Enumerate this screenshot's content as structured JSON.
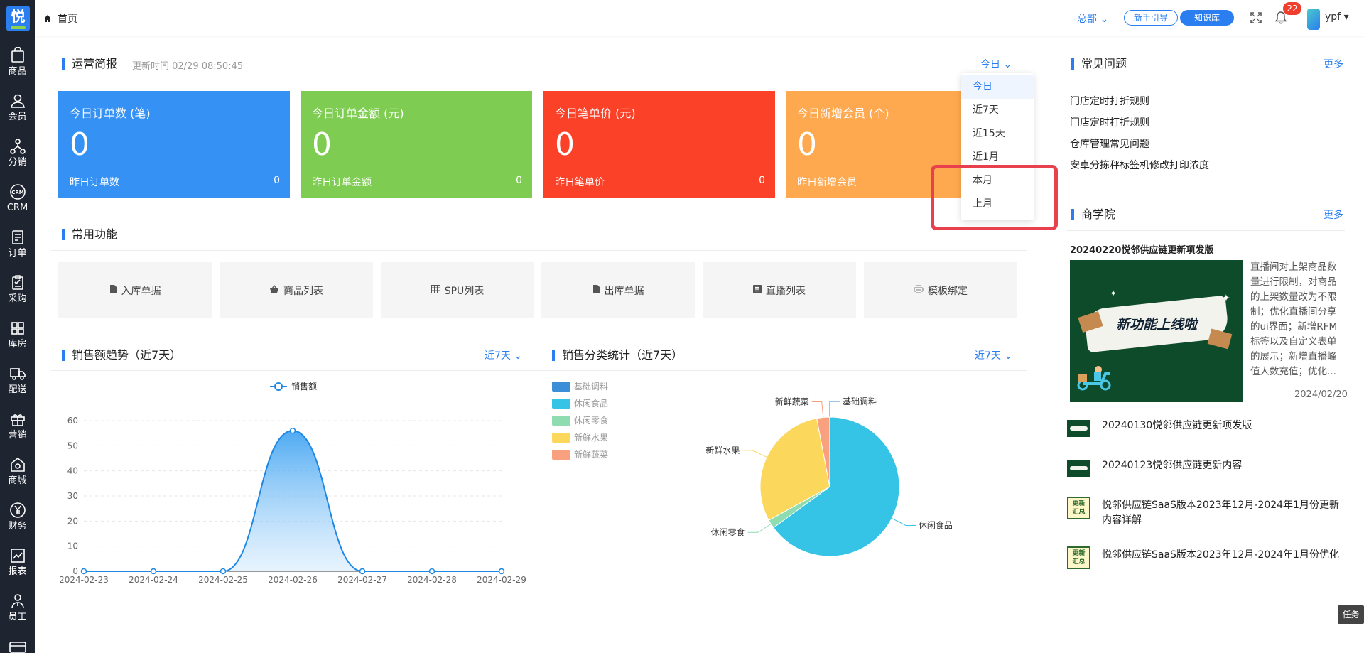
{
  "logo_char": "悦",
  "sidebar": {
    "items": [
      {
        "label": "商品",
        "icon": "bag-icon"
      },
      {
        "label": "会员",
        "icon": "user-icon"
      },
      {
        "label": "分销",
        "icon": "network-icon"
      },
      {
        "label": "CRM",
        "icon": "crm-icon"
      },
      {
        "label": "订单",
        "icon": "order-icon"
      },
      {
        "label": "采购",
        "icon": "clipboard-icon"
      },
      {
        "label": "库房",
        "icon": "grid-icon"
      },
      {
        "label": "配送",
        "icon": "truck-icon"
      },
      {
        "label": "营销",
        "icon": "gift-icon"
      },
      {
        "label": "商城",
        "icon": "store-icon"
      },
      {
        "label": "财务",
        "icon": "yen-icon"
      },
      {
        "label": "报表",
        "icon": "chart-icon"
      },
      {
        "label": "员工",
        "icon": "staff-icon"
      }
    ]
  },
  "header": {
    "breadcrumb": "首页",
    "org": "总部",
    "guide_btn": "新手引导",
    "kb_btn": "知识库",
    "notif_count": "22",
    "username": "ypf"
  },
  "overview": {
    "title": "运营简报",
    "updated": "更新时间 02/29 08:50:45",
    "period": "今日",
    "cards": [
      {
        "title": "今日订单数 (笔)",
        "value": "0",
        "foot_label": "昨日订单数",
        "foot_value": "0",
        "color": "#3691f5"
      },
      {
        "title": "今日订单金额 (元)",
        "value": "0",
        "foot_label": "昨日订单金额",
        "foot_value": "0",
        "color": "#7ecd52"
      },
      {
        "title": "今日笔单价 (元)",
        "value": "0",
        "foot_label": "昨日笔单价",
        "foot_value": "0",
        "color": "#fb4128"
      },
      {
        "title": "今日新增会员 (个)",
        "value": "0",
        "foot_label": "昨日新增会员",
        "foot_value": "",
        "color": "#fea94f"
      }
    ]
  },
  "period_dropdown": {
    "options": [
      "今日",
      "近7天",
      "近15天",
      "近1月",
      "本月",
      "上月"
    ]
  },
  "functions": {
    "title": "常用功能",
    "tiles": [
      {
        "label": "入库单据",
        "icon": "document-icon"
      },
      {
        "label": "商品列表",
        "icon": "basket-icon"
      },
      {
        "label": "SPU列表",
        "icon": "table-icon"
      },
      {
        "label": "出库单据",
        "icon": "document-icon"
      },
      {
        "label": "直播列表",
        "icon": "list-icon"
      },
      {
        "label": "模板绑定",
        "icon": "printer-icon"
      }
    ]
  },
  "sales_trend": {
    "title": "销售额趋势（近7天）",
    "period": "近7天",
    "legend": "销售额"
  },
  "category_stats": {
    "title": "销售分类统计（近7天）",
    "period": "近7天"
  },
  "faq": {
    "title": "常见问题",
    "more": "更多",
    "items": [
      "门店定时打折规则",
      "门店定时打折规则",
      "仓库管理常见问题",
      "安卓分拣秤标签机修改打印浓度"
    ]
  },
  "academy": {
    "title": "商学院",
    "more": "更多",
    "featured_title": "20240220悦邻供应链更新项发版",
    "featured_banner": "新功能上线啦",
    "featured_desc": "直播间对上架商品数量进行限制，对商品的上架数量改为不限制；优化直播间分享的ui界面；新增RFM标签以及自定义表单的展示；新增直播峰值人数充值；优化...",
    "featured_date": "2024/02/20",
    "items": [
      {
        "title": "20240130悦邻供应链更新项发版"
      },
      {
        "title": "20240123悦邻供应链更新内容"
      },
      {
        "title": "悦邻供应链SaaS版本2023年12月-2024年1月份更新内容详解",
        "thumb_text": "更新汇总"
      },
      {
        "title": "悦邻供应链SaaS版本2023年12月-2024年1月份优化",
        "thumb_text": "更新汇总"
      }
    ]
  },
  "task_button": "任务",
  "chart_data": [
    {
      "type": "line",
      "title": "",
      "series": [
        {
          "name": "销售额",
          "values": [
            0,
            0,
            0,
            56,
            0,
            0,
            0
          ]
        }
      ],
      "x": [
        "2024-02-23",
        "2024-02-24",
        "2024-02-25",
        "2024-02-26",
        "2024-02-27",
        "2024-02-28",
        "2024-02-29"
      ],
      "yticks": [
        0,
        10,
        20,
        30,
        40,
        50,
        60
      ],
      "ylim": [
        0,
        60
      ],
      "grid": true,
      "legend": "top-center"
    },
    {
      "type": "pie",
      "title": "",
      "categories": [
        "基础调料",
        "休闲食品",
        "休闲零食",
        "新鲜水果",
        "新鲜蔬菜"
      ],
      "values": [
        0,
        65,
        2,
        30,
        3
      ],
      "colors": [
        "#3a8fd6",
        "#35c3e6",
        "#8fdcb0",
        "#fbd75b",
        "#f9a07f"
      ],
      "legend": "left"
    }
  ]
}
